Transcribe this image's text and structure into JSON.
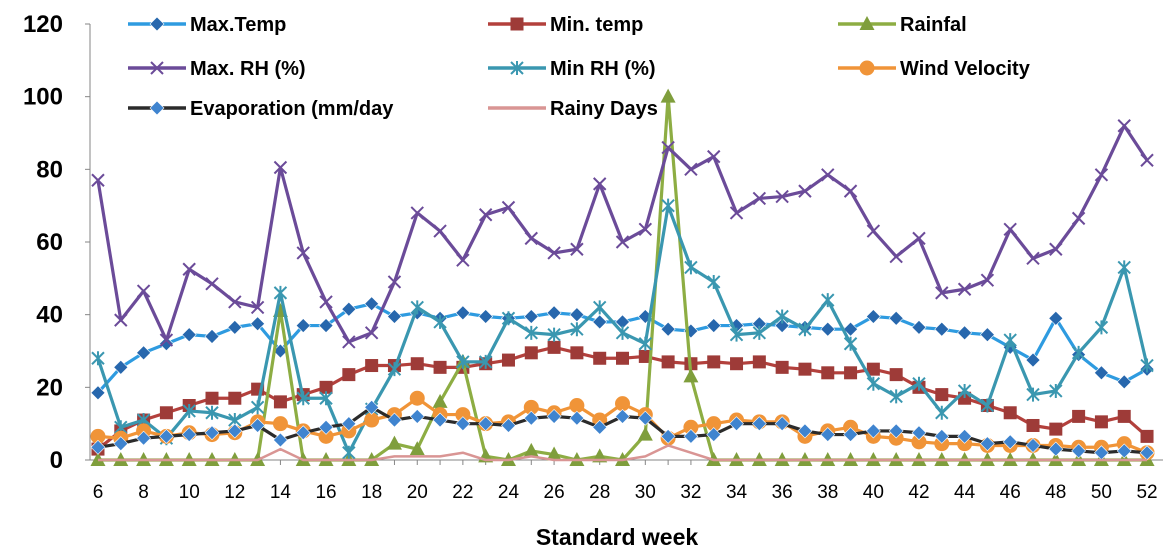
{
  "chart_data": {
    "type": "line",
    "xlabel": "Standard week",
    "ylabel": "",
    "ylim": [
      0,
      120
    ],
    "yticks": [
      0,
      20,
      40,
      60,
      80,
      100,
      120
    ],
    "x": [
      6,
      7,
      8,
      9,
      10,
      11,
      12,
      13,
      14,
      15,
      16,
      17,
      18,
      19,
      20,
      21,
      22,
      23,
      24,
      25,
      26,
      27,
      28,
      29,
      30,
      31,
      32,
      33,
      34,
      35,
      36,
      37,
      38,
      39,
      40,
      41,
      42,
      43,
      44,
      45,
      46,
      47,
      48,
      49,
      50,
      51,
      52
    ],
    "xtick_labels": [
      6,
      8,
      10,
      12,
      14,
      16,
      18,
      20,
      22,
      24,
      26,
      28,
      30,
      32,
      34,
      36,
      38,
      40,
      42,
      44,
      46,
      48,
      50,
      52
    ],
    "legend_position": "top",
    "series": [
      {
        "name": "Max.Temp",
        "color": "#2e9be0",
        "marker": "diamond",
        "marker_color": "#2767ad",
        "values": [
          18.5,
          25.5,
          29.5,
          32,
          34.5,
          34,
          36.5,
          37.5,
          30,
          37,
          37,
          41.5,
          43,
          39.5,
          40.5,
          39,
          40.5,
          39.5,
          39,
          39.5,
          40.5,
          40,
          38,
          38,
          39.5,
          36,
          35.5,
          37,
          37,
          37.5,
          37,
          36.5,
          36,
          36,
          39.5,
          39,
          36.5,
          36,
          35,
          34.5,
          31,
          27.5,
          39,
          29,
          24,
          21.5,
          25
        ]
      },
      {
        "name": "Min. temp",
        "color": "#b3403c",
        "marker": "square",
        "marker_color": "#9e3b38",
        "values": [
          3,
          8,
          11,
          13,
          15,
          17,
          17,
          19.5,
          16,
          18,
          20,
          23.5,
          26,
          26,
          26.5,
          25.5,
          25.5,
          26.5,
          27.5,
          29.5,
          31,
          29.5,
          28,
          28,
          28.5,
          27,
          26.5,
          27,
          26.5,
          27,
          25.5,
          25,
          24,
          24,
          25,
          23.5,
          20,
          18,
          17,
          15,
          13,
          9.5,
          8.5,
          12,
          10.5,
          12,
          6.5
        ]
      },
      {
        "name": "Rainfal",
        "color": "#8dad43",
        "marker": "triangle",
        "marker_color": "#7f9e3c",
        "values": [
          0,
          0,
          0,
          0,
          0,
          0,
          0,
          0,
          41,
          0,
          0,
          0,
          0,
          4.5,
          3,
          16,
          27,
          1,
          0,
          2.5,
          1.5,
          0,
          1,
          0,
          7,
          100,
          23,
          0,
          0,
          0,
          0,
          0,
          0,
          0,
          0,
          0,
          0,
          0,
          0,
          0,
          0,
          0,
          0,
          0,
          0,
          0,
          0
        ]
      },
      {
        "name": "Max. RH (%)",
        "color": "#6b4b99",
        "marker": "x",
        "marker_color": "#6b4b99",
        "values": [
          77,
          38.5,
          46.5,
          33,
          52.5,
          48.5,
          43.5,
          42,
          80.5,
          57,
          43.5,
          32.5,
          35,
          49,
          68,
          63,
          55,
          67.5,
          69.5,
          61,
          57,
          58,
          76,
          60,
          63.5,
          86,
          80,
          83.5,
          68,
          72,
          72.5,
          74,
          78.5,
          74,
          63,
          56,
          61,
          46,
          47,
          49.5,
          63.5,
          55.5,
          58,
          66.5,
          78.5,
          92,
          82.5
        ]
      },
      {
        "name": "Min RH (%)",
        "color": "#3a97b0",
        "marker": "star",
        "marker_color": "#3a97b0",
        "values": [
          28,
          9,
          11,
          6,
          13.5,
          13,
          11,
          14.5,
          46,
          17,
          17,
          2,
          14,
          25,
          42,
          38,
          27,
          27,
          39,
          35,
          34.5,
          36,
          42,
          35,
          32,
          70,
          53,
          49,
          34.5,
          35,
          39.5,
          36,
          44,
          32,
          21,
          17.5,
          21,
          13,
          19,
          15,
          33,
          18,
          19,
          29.5,
          36.5,
          53,
          26
        ]
      },
      {
        "name": "Wind Velocity",
        "color": "#f09438",
        "marker": "circle",
        "marker_color": "#f09438",
        "values": [
          6.5,
          6,
          8,
          6.5,
          7.5,
          7,
          7.5,
          10.5,
          10,
          8,
          6.5,
          8,
          11,
          12.5,
          17,
          12.5,
          12.5,
          10,
          10.5,
          14.5,
          13,
          15,
          11,
          15.5,
          12.5,
          6,
          9,
          10,
          11,
          10.5,
          10.5,
          6.5,
          8,
          9,
          6.5,
          6,
          5,
          4.5,
          4.5,
          4,
          4,
          4,
          4,
          3.5,
          3.5,
          4.5,
          2
        ]
      },
      {
        "name": "Evaporation (mm/day",
        "color": "#2b2b2b",
        "marker": "diamond",
        "marker_color": "#3f84cf",
        "values": [
          3.5,
          4.5,
          6,
          6.5,
          7,
          7.5,
          8,
          9.5,
          5.5,
          7.5,
          9,
          10,
          14.5,
          11,
          12,
          11,
          10,
          10,
          9.5,
          11.5,
          12,
          11.5,
          9,
          12,
          11.5,
          6.5,
          6.5,
          7,
          10,
          10,
          10,
          8,
          7,
          7,
          8,
          8,
          7.5,
          6.5,
          6.5,
          4.5,
          5,
          4,
          3,
          2.5,
          2,
          2.5,
          2
        ]
      },
      {
        "name": "Rainy Days",
        "color": "#d99594",
        "marker": "none",
        "marker_color": "#d99594",
        "values": [
          0,
          0,
          0,
          0,
          0,
          0,
          0,
          0,
          3,
          0,
          0,
          0,
          0,
          1,
          1,
          1,
          2,
          0,
          0,
          1,
          0,
          0,
          0,
          0,
          1,
          4,
          2,
          0,
          0,
          0,
          0,
          0,
          0,
          0,
          0,
          0,
          0,
          0,
          0,
          0,
          0,
          0,
          0,
          0,
          0,
          0,
          0
        ]
      }
    ]
  }
}
